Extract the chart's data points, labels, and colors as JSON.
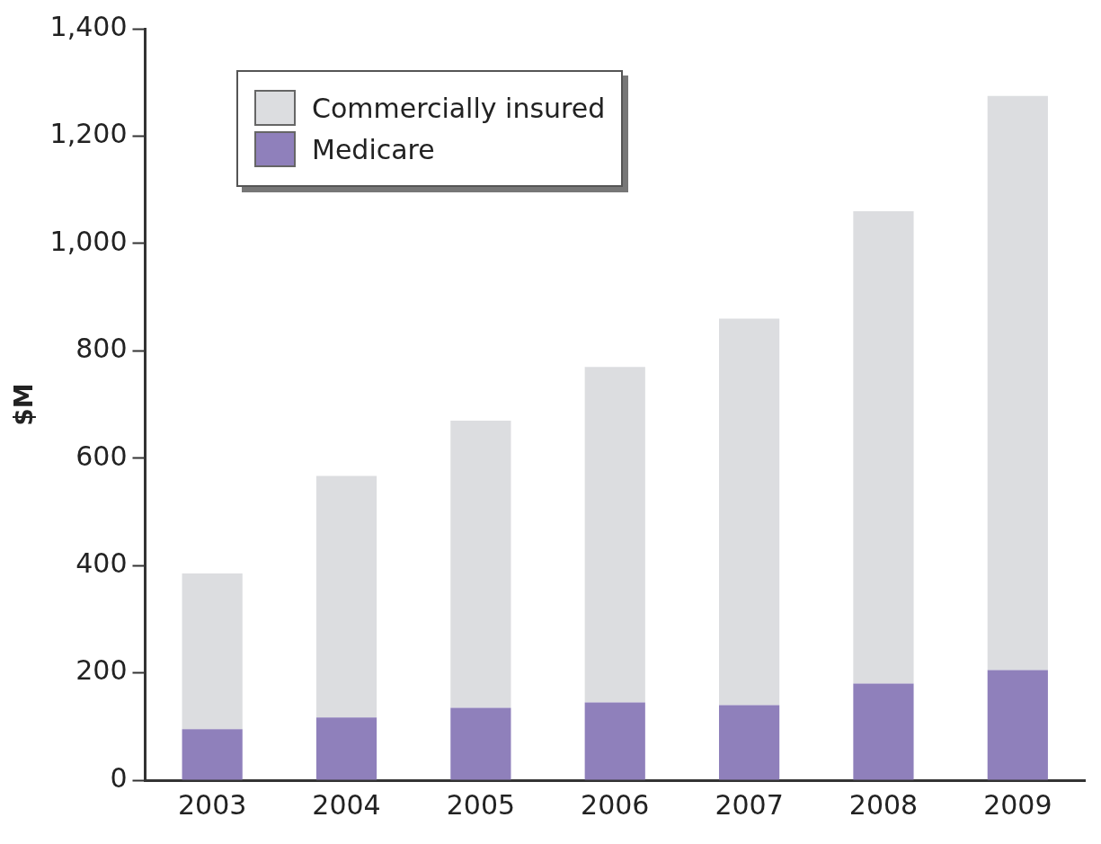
{
  "chart_data": {
    "type": "bar",
    "ylabel": "$M",
    "categories": [
      "2003",
      "2004",
      "2005",
      "2006",
      "2007",
      "2008",
      "2009"
    ],
    "stacked": true,
    "legend": "top left",
    "grid": false,
    "ylim": [
      0,
      1400
    ],
    "yticks": [
      0,
      {
        "value": 200,
        "label": "200"
      },
      {
        "value": 400,
        "label": "400"
      },
      {
        "value": 600,
        "label": "600"
      },
      {
        "value": 800,
        "label": "800"
      },
      {
        "value": 1000,
        "label": "1,000"
      },
      {
        "value": 1200,
        "label": "1,200"
      },
      {
        "value": 1400,
        "label": "1,400"
      }
    ],
    "series": [
      {
        "name": "Medicare",
        "color": "#8f80bb",
        "values": [
          95,
          117,
          135,
          145,
          140,
          180,
          205
        ]
      },
      {
        "name": "Commercially insured",
        "color": "#dcdde0",
        "values": [
          290,
          450,
          535,
          625,
          720,
          880,
          1070
        ]
      }
    ]
  }
}
